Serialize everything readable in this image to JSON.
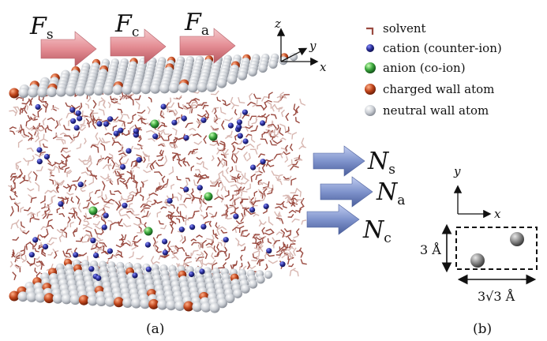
{
  "forces": [
    {
      "symbol": "F",
      "sub": "s"
    },
    {
      "symbol": "F",
      "sub": "c"
    },
    {
      "symbol": "F",
      "sub": "a"
    }
  ],
  "fluxes": [
    {
      "symbol": "N",
      "sub": "s"
    },
    {
      "symbol": "N",
      "sub": "a"
    },
    {
      "symbol": "N",
      "sub": "c"
    }
  ],
  "axes_a": {
    "z": "z",
    "y": "y",
    "x": "x"
  },
  "legend": [
    {
      "key": "solvent",
      "label": "solvent"
    },
    {
      "key": "cation",
      "label": "cation (counter-ion)"
    },
    {
      "key": "anion",
      "label": "anion (co-ion)"
    },
    {
      "key": "charged",
      "label": "charged wall atom"
    },
    {
      "key": "neutral",
      "label": "neutral wall atom"
    }
  ],
  "panel_b": {
    "axis_y": "y",
    "axis_x": "x",
    "height_label": "3 Å",
    "width_label": "3√3 Å"
  },
  "captions": {
    "a": "(a)",
    "b": "(b)"
  },
  "colors": {
    "force_arrow": "#e99a9f",
    "flux_arrow": "#7f93cc",
    "cation": "#2a2f9a",
    "anion": "#3aa63c",
    "charged_wall": "#c0461c",
    "neutral_wall": "#c9cdd3",
    "solvent": "#9a4a40"
  }
}
